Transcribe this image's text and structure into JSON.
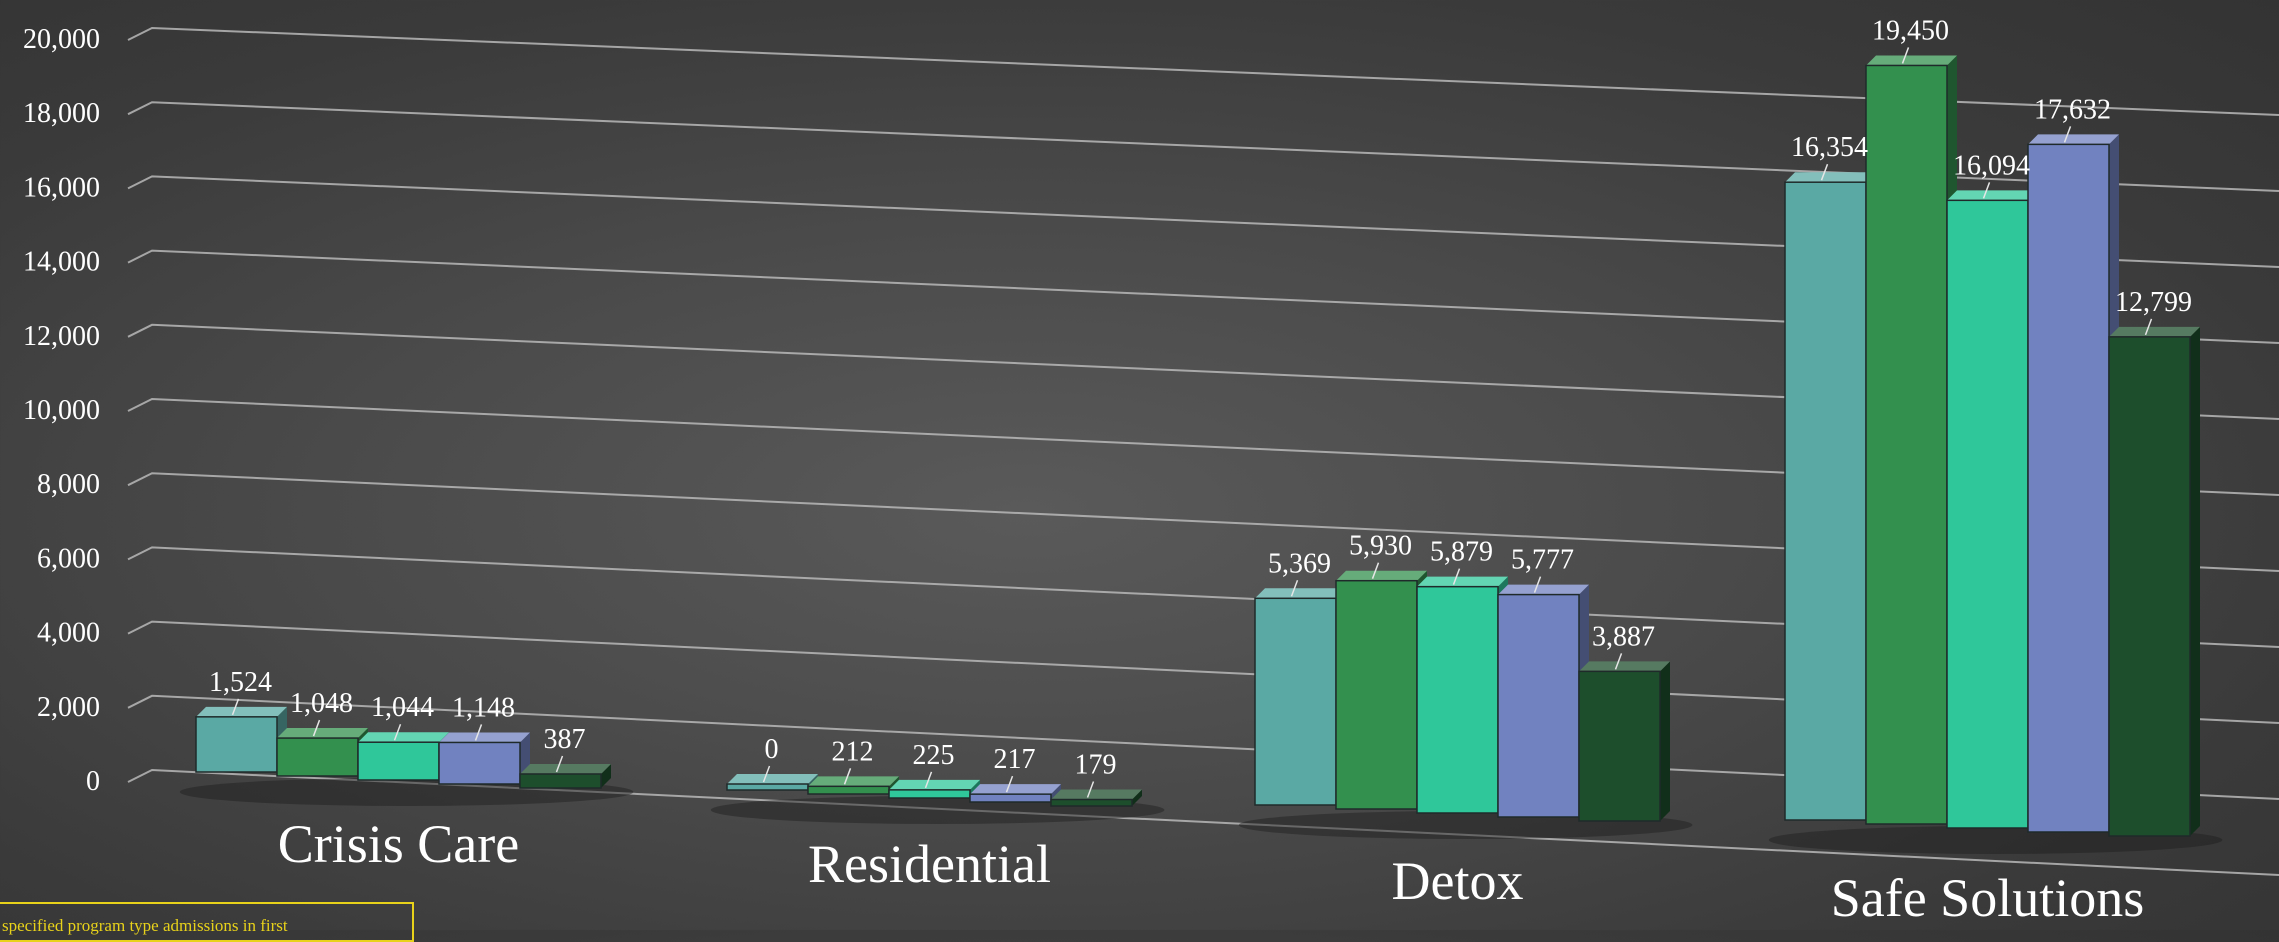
{
  "chart_data": {
    "type": "bar",
    "categories": [
      "Crisis Care",
      "Residential",
      "Detox",
      "Safe Solutions"
    ],
    "series": [
      {
        "values": [
          1524,
          0,
          5369,
          16354
        ],
        "color": "#5aa9a4"
      },
      {
        "values": [
          1048,
          212,
          5930,
          19450
        ],
        "color": "#33904e"
      },
      {
        "values": [
          1044,
          225,
          5879,
          16094
        ],
        "color": "#2fc79a"
      },
      {
        "values": [
          1148,
          217,
          5777,
          17632
        ],
        "color": "#7182c0"
      },
      {
        "values": [
          387,
          179,
          3887,
          12799
        ],
        "color": "#1d4e2c"
      }
    ],
    "value_labels": [
      [
        "1,524",
        "1,048",
        "1,044",
        "1,148",
        "387"
      ],
      [
        "0",
        "212",
        "225",
        "217",
        "179"
      ],
      [
        "5,369",
        "5,930",
        "5,879",
        "5,777",
        "3,887"
      ],
      [
        "16,354",
        "19,450",
        "16,094",
        "17,632",
        "12,799"
      ]
    ],
    "y_ticks": [
      "0",
      "2,000",
      "4,000",
      "6,000",
      "8,000",
      "10,000",
      "12,000",
      "14,000",
      "16,000",
      "18,000",
      "20,000"
    ],
    "ylim": [
      0,
      20000
    ],
    "grid": true,
    "footnote": "specified program type admissions in first"
  }
}
